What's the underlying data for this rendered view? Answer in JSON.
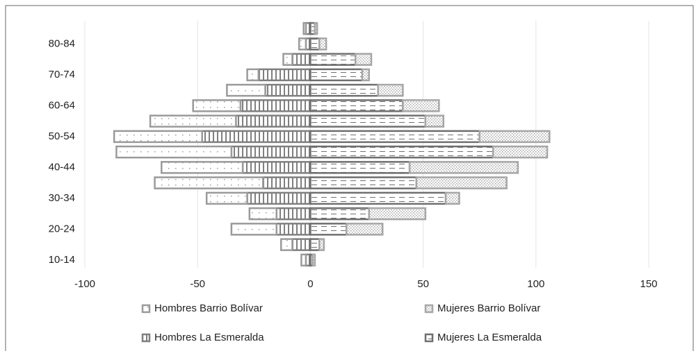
{
  "chart_data": {
    "type": "bar",
    "categories": [
      "10-14",
      null,
      "20-24",
      null,
      "30-34",
      null,
      "40-44",
      null,
      "50-54",
      null,
      "60-64",
      null,
      "70-74",
      null,
      "80-84",
      null
    ],
    "series": [
      {
        "name": "Hombres La Esmeralda",
        "color": "#7f7f7f",
        "values": [
          -2,
          -8,
          -15,
          -15,
          -28,
          -21,
          -30,
          -35,
          -48,
          -33,
          -31,
          -20,
          -23,
          -8,
          -2,
          -2
        ]
      },
      {
        "name": "Mujeres La Esmeralda",
        "color": "#6f6f6f",
        "values": [
          1,
          4,
          16,
          26,
          60,
          47,
          44,
          81,
          75,
          51,
          41,
          30,
          23,
          20,
          4,
          2
        ]
      },
      {
        "name": "Hombres Barrio Bolívar",
        "color": "#9a9a9a",
        "values": [
          -2,
          -5,
          -20,
          -12,
          -18,
          -48,
          -36,
          -51,
          -39,
          -38,
          -21,
          -17,
          -5,
          -4,
          -3,
          -1
        ]
      },
      {
        "name": "Mujeres Barrio Bolívar",
        "color": "#a6a6a6",
        "values": [
          1,
          2,
          16,
          25,
          6,
          40,
          48,
          24,
          31,
          8,
          16,
          11,
          3,
          7,
          3,
          1
        ]
      }
    ],
    "xlim": [
      -100,
      150
    ],
    "xticks": [
      -100,
      -50,
      0,
      50,
      100,
      150
    ],
    "grid": true
  }
}
